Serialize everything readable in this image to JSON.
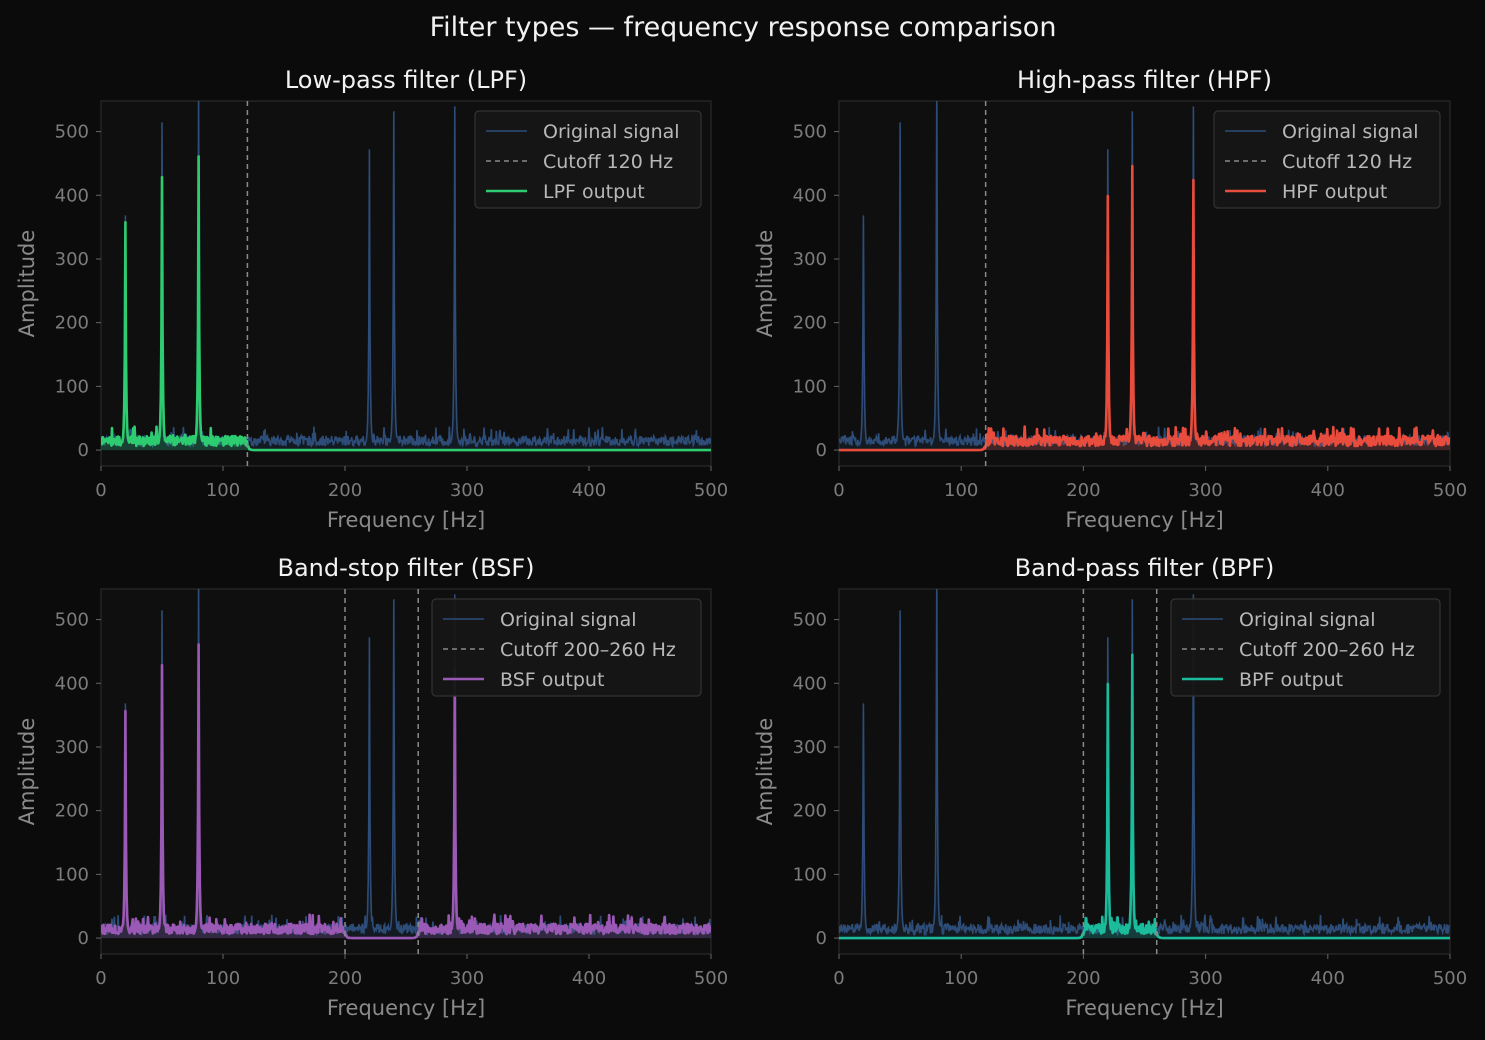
{
  "figure": {
    "title": "Filter types — frequency response comparison"
  },
  "colors": {
    "background": "#0b0b0b",
    "axes_bg": "#0f0f0f",
    "spine": "#2a2a2a",
    "original": "#2d4d78",
    "cutoff": "#8a8a8a",
    "lpf": "#2ecc71",
    "hpf": "#e74c3c",
    "bsf": "#9b59b6",
    "bpf": "#1abc9c"
  },
  "chart_data": [
    {
      "type": "line",
      "title": "Low-pass filter (LPF)",
      "xlabel": "Frequency [Hz]",
      "ylabel": "Amplitude",
      "xlim": [
        0,
        500
      ],
      "ylim": [
        -25,
        548
      ],
      "xticks": [
        "0",
        "100",
        "200",
        "300",
        "400",
        "500"
      ],
      "yticks": [
        "0",
        "100",
        "200",
        "300",
        "400",
        "500"
      ],
      "legend": {
        "position": "top-right",
        "entries": [
          "Original signal",
          "Cutoff 120 Hz",
          "LPF output"
        ]
      },
      "filter": "lpf",
      "cutoffs": [
        120
      ],
      "color_key": "lpf",
      "noise_floor": 18,
      "series": [
        {
          "name": "Original signal",
          "peaks": [
            [
              20,
              338
            ],
            [
              50,
              472
            ],
            [
              80,
              522
            ],
            [
              220,
              433
            ],
            [
              240,
              488
            ],
            [
              290,
              495
            ]
          ]
        },
        {
          "name": "LPF output",
          "peaks": [
            [
              20,
              328
            ],
            [
              50,
              393
            ],
            [
              80,
              423
            ]
          ]
        }
      ]
    },
    {
      "type": "line",
      "title": "High-pass filter (HPF)",
      "xlabel": "Frequency [Hz]",
      "ylabel": "Amplitude",
      "xlim": [
        0,
        500
      ],
      "ylim": [
        -25,
        548
      ],
      "xticks": [
        "0",
        "100",
        "200",
        "300",
        "400",
        "500"
      ],
      "yticks": [
        "0",
        "100",
        "200",
        "300",
        "400",
        "500"
      ],
      "legend": {
        "position": "top-right",
        "entries": [
          "Original signal",
          "Cutoff 120 Hz",
          "HPF output"
        ]
      },
      "filter": "hpf",
      "cutoffs": [
        120
      ],
      "color_key": "hpf",
      "noise_floor": 18,
      "series": [
        {
          "name": "Original signal",
          "peaks": [
            [
              20,
              338
            ],
            [
              50,
              472
            ],
            [
              80,
              522
            ],
            [
              220,
              433
            ],
            [
              240,
              488
            ],
            [
              290,
              495
            ]
          ]
        },
        {
          "name": "HPF output",
          "peaks": [
            [
              220,
              366
            ],
            [
              240,
              409
            ],
            [
              290,
              389
            ]
          ]
        }
      ]
    },
    {
      "type": "line",
      "title": "Band-stop filter (BSF)",
      "xlabel": "Frequency [Hz]",
      "ylabel": "Amplitude",
      "xlim": [
        0,
        500
      ],
      "ylim": [
        -25,
        548
      ],
      "xticks": [
        "0",
        "100",
        "200",
        "300",
        "400",
        "500"
      ],
      "yticks": [
        "0",
        "100",
        "200",
        "300",
        "400",
        "500"
      ],
      "legend": {
        "position": "top-right",
        "entries": [
          "Original signal",
          "Cutoff 200–260 Hz",
          "BSF output"
        ]
      },
      "filter": "bsf",
      "cutoffs": [
        200,
        260
      ],
      "color_key": "bsf",
      "noise_floor": 18,
      "series": [
        {
          "name": "Original signal",
          "peaks": [
            [
              20,
              338
            ],
            [
              50,
              472
            ],
            [
              80,
              522
            ],
            [
              220,
              433
            ],
            [
              240,
              488
            ],
            [
              290,
              495
            ]
          ]
        },
        {
          "name": "BSF output",
          "peaks": [
            [
              20,
              327
            ],
            [
              50,
              393
            ],
            [
              80,
              423
            ],
            [
              290,
              390
            ]
          ]
        }
      ]
    },
    {
      "type": "line",
      "title": "Band-pass filter (BPF)",
      "xlabel": "Frequency [Hz]",
      "ylabel": "Amplitude",
      "xlim": [
        0,
        500
      ],
      "ylim": [
        -25,
        548
      ],
      "xticks": [
        "0",
        "100",
        "200",
        "300",
        "400",
        "500"
      ],
      "yticks": [
        "0",
        "100",
        "200",
        "300",
        "400",
        "500"
      ],
      "legend": {
        "position": "top-right",
        "entries": [
          "Original signal",
          "Cutoff 200–260 Hz",
          "BPF output"
        ]
      },
      "filter": "bpf",
      "cutoffs": [
        200,
        260
      ],
      "color_key": "bpf",
      "noise_floor": 18,
      "series": [
        {
          "name": "Original signal",
          "peaks": [
            [
              20,
              338
            ],
            [
              50,
              472
            ],
            [
              80,
              522
            ],
            [
              220,
              433
            ],
            [
              240,
              488
            ],
            [
              290,
              495
            ]
          ]
        },
        {
          "name": "BPF output",
          "peaks": [
            [
              220,
              366
            ],
            [
              240,
              408
            ]
          ]
        }
      ]
    }
  ]
}
